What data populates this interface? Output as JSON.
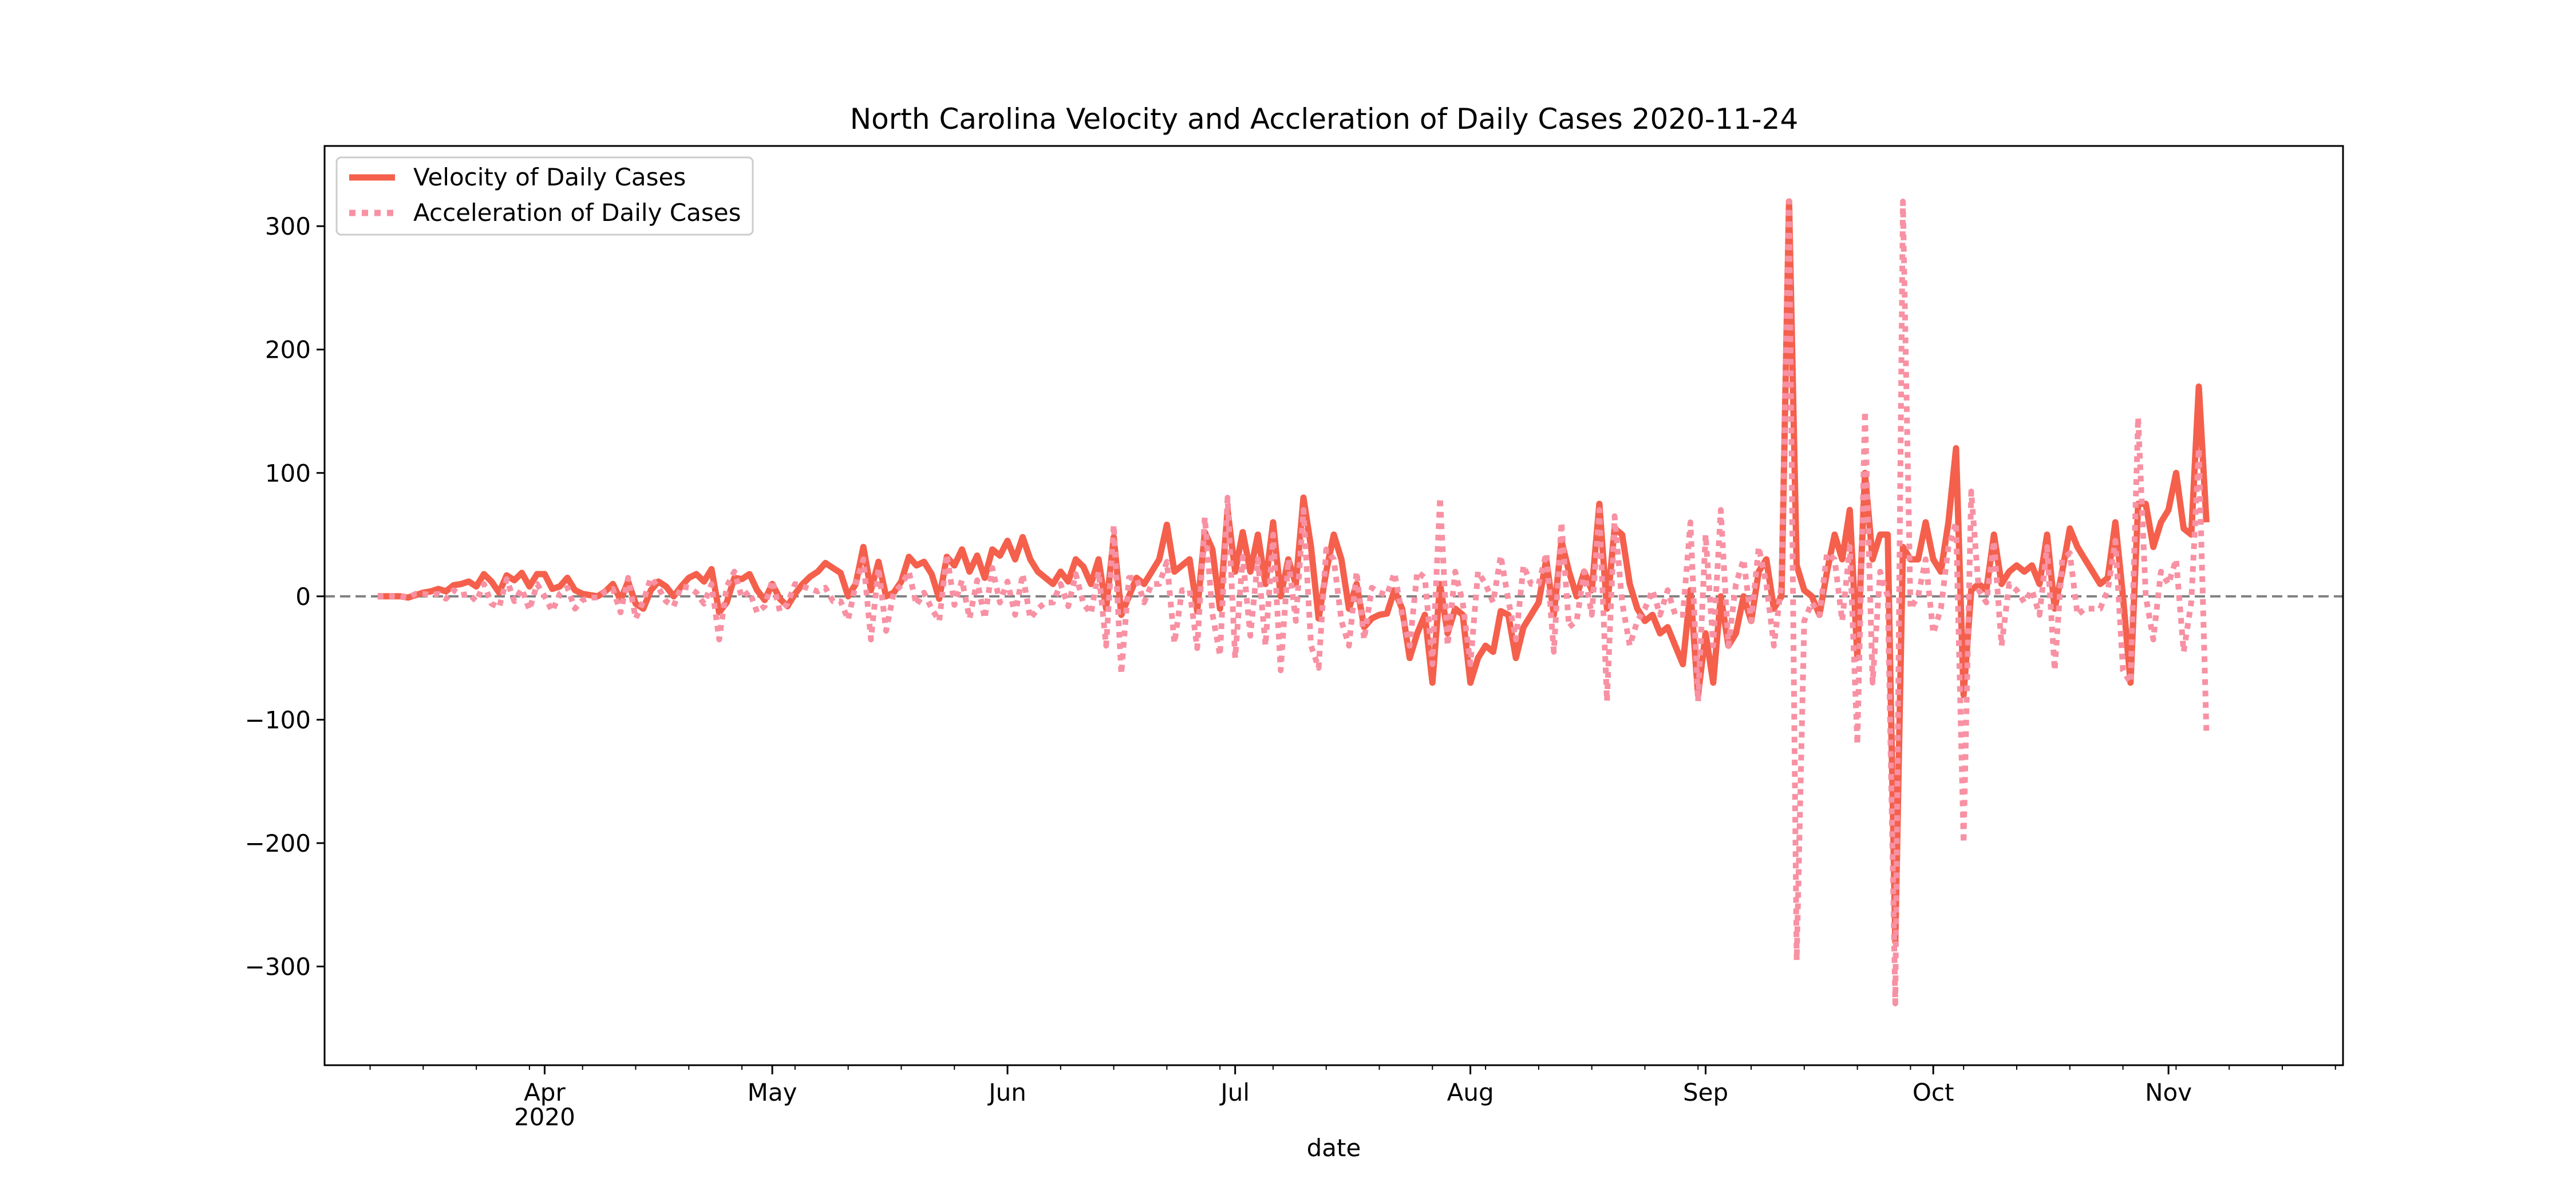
{
  "chart_data": {
    "type": "line",
    "title": "North Carolina Velocity and Accleration of Daily Cases 2020-11-24",
    "xlabel": "date",
    "ylabel": "",
    "x_start": "2020-03-10",
    "x_end": "2020-11-24",
    "xlim": [
      "2020-03-03",
      "2020-11-24"
    ],
    "ylim": [
      -380,
      365
    ],
    "y_ticks": [
      -300,
      -200,
      -100,
      0,
      100,
      200,
      300
    ],
    "y_tick_labels": [
      "−300",
      "−200",
      "−100",
      "0",
      "100",
      "200",
      "300"
    ],
    "x_ticks": [
      {
        "date": "2020-04-01",
        "label": "Apr",
        "sublabel": "2020"
      },
      {
        "date": "2020-05-01",
        "label": "May",
        "sublabel": ""
      },
      {
        "date": "2020-06-01",
        "label": "Jun",
        "sublabel": ""
      },
      {
        "date": "2020-07-01",
        "label": "Jul",
        "sublabel": ""
      },
      {
        "date": "2020-08-01",
        "label": "Aug",
        "sublabel": ""
      },
      {
        "date": "2020-09-01",
        "label": "Sep",
        "sublabel": ""
      },
      {
        "date": "2020-10-01",
        "label": "Oct",
        "sublabel": ""
      },
      {
        "date": "2020-11-01",
        "label": "Nov",
        "sublabel": ""
      }
    ],
    "zero_line": {
      "y": 0,
      "color": "#808080",
      "style": "dashed"
    },
    "legend": {
      "position": "top-left"
    },
    "grid": false,
    "series": [
      {
        "name": "Velocity of Daily Cases",
        "color": "#f4604c",
        "style": "solid",
        "values": [
          0,
          0,
          0,
          0,
          -1,
          1,
          3,
          4,
          6,
          4,
          9,
          10,
          12,
          8,
          18,
          12,
          3,
          17,
          13,
          19,
          8,
          18,
          18,
          6,
          8,
          15,
          5,
          2,
          1,
          0,
          4,
          10,
          -3,
          12,
          -6,
          -10,
          5,
          12,
          8,
          0,
          8,
          15,
          18,
          12,
          22,
          -13,
          -5,
          15,
          14,
          18,
          5,
          -3,
          10,
          -2,
          -8,
          2,
          10,
          16,
          20,
          27,
          23,
          19,
          0,
          10,
          40,
          5,
          28,
          0,
          3,
          12,
          32,
          25,
          28,
          18,
          -2,
          32,
          25,
          38,
          20,
          33,
          15,
          38,
          33,
          45,
          30,
          48,
          30,
          20,
          15,
          10,
          20,
          12,
          30,
          24,
          10,
          30,
          -10,
          48,
          -15,
          0,
          15,
          10,
          20,
          30,
          58,
          20,
          25,
          30,
          -12,
          52,
          38,
          -10,
          70,
          20,
          52,
          20,
          50,
          10,
          60,
          0,
          30,
          10,
          80,
          40,
          -18,
          20,
          50,
          30,
          -10,
          10,
          -25,
          -18,
          -15,
          -14,
          5,
          -10,
          -50,
          -30,
          -15,
          -70,
          10,
          -30,
          -10,
          -15,
          -70,
          -50,
          -40,
          -45,
          -12,
          -15,
          -50,
          -25,
          -15,
          -5,
          30,
          -15,
          45,
          20,
          0,
          20,
          5,
          75,
          -10,
          55,
          50,
          10,
          -10,
          -20,
          -15,
          -30,
          -25,
          -40,
          -55,
          5,
          -80,
          -30,
          -70,
          0,
          -40,
          -30,
          0,
          -20,
          20,
          30,
          -10,
          0,
          320,
          25,
          5,
          0,
          -15,
          20,
          50,
          30,
          70,
          -50,
          100,
          30,
          50,
          50,
          -280,
          40,
          30,
          30,
          60,
          30,
          20,
          60,
          120,
          -80,
          5,
          10,
          5,
          50,
          10,
          20,
          25,
          20,
          25,
          10,
          50,
          -10,
          20,
          55,
          40,
          30,
          20,
          10,
          15,
          60,
          0,
          -70,
          75,
          75,
          40,
          60,
          70,
          100,
          55,
          50,
          170,
          60
        ]
      },
      {
        "name": "Acceleration of Daily Cases",
        "color": "#f891a3",
        "style": "dotted",
        "values": [
          0,
          0,
          0,
          0,
          -1,
          2,
          2,
          1,
          2,
          -2,
          5,
          1,
          2,
          -4,
          10,
          -6,
          -9,
          14,
          -4,
          6,
          -11,
          10,
          0,
          -12,
          2,
          7,
          -10,
          -3,
          -1,
          -1,
          4,
          6,
          -13,
          15,
          -18,
          -4,
          15,
          7,
          -4,
          -8,
          8,
          7,
          3,
          -6,
          10,
          -35,
          8,
          20,
          -1,
          4,
          -13,
          -8,
          13,
          -12,
          -6,
          10,
          8,
          6,
          4,
          7,
          -4,
          -4,
          -19,
          10,
          30,
          -35,
          23,
          -28,
          3,
          9,
          20,
          -7,
          3,
          -10,
          -20,
          34,
          -7,
          13,
          -18,
          13,
          -18,
          23,
          -5,
          12,
          -15,
          18,
          -18,
          -10,
          -5,
          -5,
          10,
          -8,
          18,
          -6,
          -14,
          20,
          -40,
          58,
          -63,
          15,
          15,
          -5,
          10,
          10,
          28,
          -38,
          5,
          5,
          -42,
          64,
          -14,
          -48,
          80,
          -50,
          32,
          -32,
          30,
          -40,
          50,
          -60,
          30,
          -20,
          70,
          -40,
          -58,
          38,
          30,
          -20,
          -40,
          20,
          -35,
          7,
          3,
          1,
          19,
          -15,
          -40,
          20,
          15,
          -55,
          80,
          -40,
          20,
          -5,
          -55,
          20,
          10,
          -5,
          33,
          -3,
          -35,
          25,
          10,
          10,
          35,
          -45,
          60,
          -25,
          -20,
          20,
          -15,
          70,
          -85,
          65,
          -5,
          -40,
          -20,
          -10,
          5,
          -15,
          5,
          -15,
          -15,
          60,
          -85,
          50,
          -40,
          70,
          -40,
          10,
          30,
          -20,
          40,
          10,
          -40,
          10,
          320,
          -295,
          -20,
          -5,
          -15,
          35,
          30,
          -20,
          40,
          -120,
          150,
          -70,
          20,
          0,
          -330,
          320,
          -10,
          0,
          30,
          -30,
          -10,
          40,
          60,
          -200,
          85,
          5,
          -5,
          45,
          -40,
          10,
          5,
          -5,
          5,
          -15,
          40,
          -60,
          30,
          35,
          -15,
          -10,
          -10,
          -10,
          5,
          45,
          -60,
          -70,
          145,
          0,
          -35,
          20,
          10,
          30,
          -45,
          -5,
          120,
          -110
        ]
      }
    ]
  }
}
